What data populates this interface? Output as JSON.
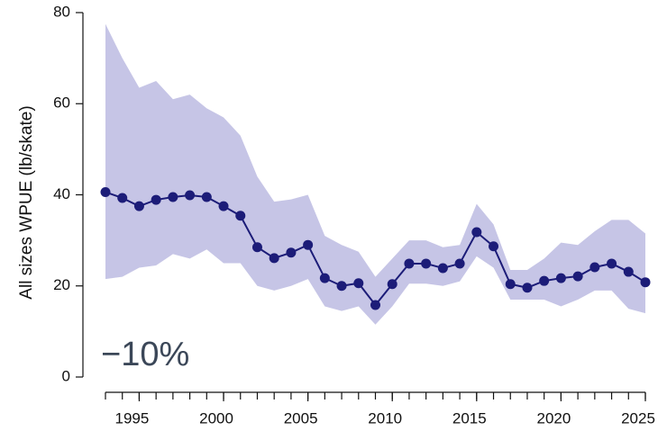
{
  "chart_data": {
    "type": "line",
    "y_label": "All sizes WPUE (lb/skate)",
    "annotation": "−10%",
    "x": [
      1993,
      1994,
      1995,
      1996,
      1997,
      1998,
      1999,
      2000,
      2001,
      2002,
      2003,
      2004,
      2005,
      2006,
      2007,
      2008,
      2009,
      2010,
      2011,
      2012,
      2013,
      2014,
      2015,
      2016,
      2017,
      2018,
      2019,
      2020,
      2021,
      2022,
      2023,
      2024,
      2025
    ],
    "series": [
      {
        "color": "#1c1c78",
        "values": [
          40.6,
          39.3,
          37.5,
          38.9,
          39.5,
          39.9,
          39.5,
          37.5,
          35.4,
          28.5,
          26.1,
          27.3,
          29.0,
          21.7,
          20.0,
          20.6,
          15.8,
          20.4,
          24.9,
          24.9,
          23.9,
          24.9,
          31.8,
          28.7,
          20.4,
          19.6,
          21.1,
          21.7,
          22.1,
          24.1,
          24.9,
          23.1,
          20.8
        ]
      }
    ],
    "band": {
      "color": "#c6c5e6",
      "upper": [
        77.5,
        70,
        63.5,
        65,
        61,
        62,
        59,
        57,
        53,
        44,
        38.5,
        39,
        40,
        31,
        29,
        27.5,
        22,
        26,
        30,
        30,
        28.5,
        29,
        38,
        33.5,
        23.5,
        23.5,
        26,
        29.5,
        29,
        32,
        34.5,
        34.5,
        31.5
      ],
      "lower": [
        21.5,
        22,
        24,
        24.5,
        27,
        26,
        28,
        25,
        25,
        20,
        19,
        20,
        21.5,
        15.5,
        14.5,
        15.5,
        11.5,
        15.5,
        20.5,
        20.5,
        20,
        21,
        26.5,
        24,
        17,
        17,
        17,
        15.5,
        17,
        19,
        19,
        15,
        14
      ]
    },
    "xlim": [
      1993,
      2025
    ],
    "xticks": [
      1995,
      2000,
      2005,
      2010,
      2015,
      2020,
      2025
    ],
    "ylim": [
      0,
      80
    ],
    "yticks": [
      0,
      20,
      40,
      60,
      80
    ]
  }
}
